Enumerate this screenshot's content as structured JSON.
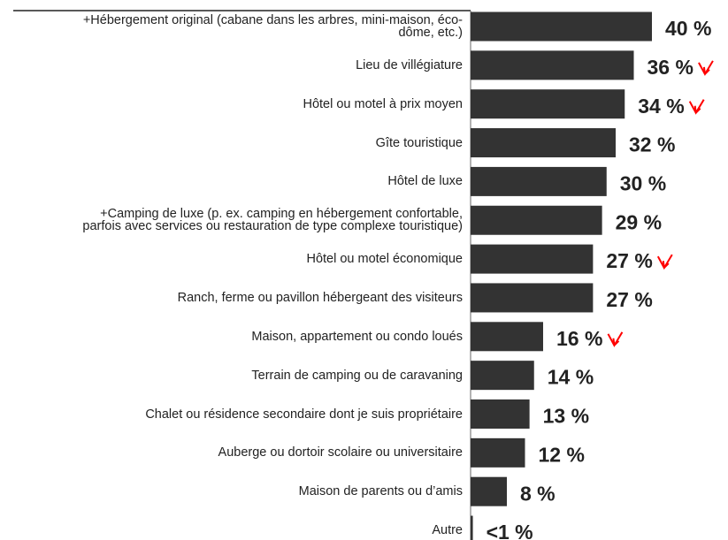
{
  "chart_data": {
    "type": "bar",
    "orientation": "horizontal",
    "categories": [
      "+Hébergement original (cabane dans les arbres, mini-maison, éco-\ndôme, etc.)",
      "Lieu de villégiature",
      "Hôtel ou motel à prix moyen",
      "Gîte touristique",
      "Hôtel de luxe",
      "+Camping de luxe (p. ex. camping en hébergement confortable,\nparfois avec services ou restauration de type complexe touristique)",
      "Hôtel ou motel économique",
      "Ranch, ferme ou pavillon hébergeant des visiteurs",
      "Maison, appartement ou condo loués",
      "Terrain de camping ou de caravaning",
      "Chalet ou résidence secondaire dont je suis propriétaire",
      "Auberge ou dortoir scolaire ou universitaire",
      "Maison de parents ou d’amis",
      "Autre"
    ],
    "values": [
      40,
      36,
      34,
      32,
      30,
      29,
      27,
      27,
      16,
      14,
      13,
      12,
      8,
      0.5
    ],
    "value_labels": [
      "40 %",
      "36 %",
      "34 %",
      "32 %",
      "30 %",
      "29 %",
      "27 %",
      "27 %",
      "16 %",
      "14 %",
      "13 %",
      "12 %",
      "8 %",
      "<1 %"
    ],
    "decline_marker": [
      false,
      true,
      true,
      false,
      false,
      false,
      true,
      false,
      true,
      false,
      false,
      false,
      false,
      false
    ],
    "color": "#333333",
    "marker_color": "#ff0000",
    "xlim": [
      0,
      56
    ]
  }
}
